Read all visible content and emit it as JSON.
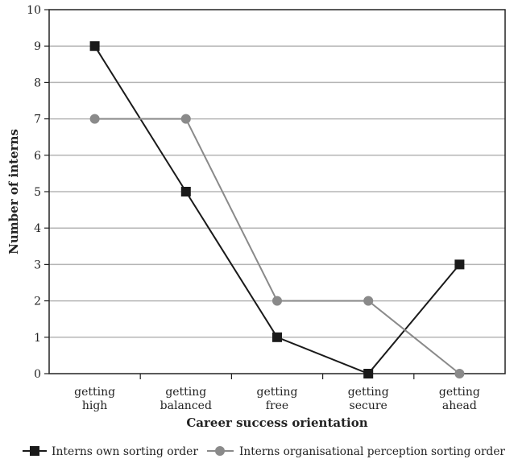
{
  "chart_data": {
    "type": "line",
    "categories": [
      [
        "getting",
        "high"
      ],
      [
        "getting",
        "balanced"
      ],
      [
        "getting",
        "free"
      ],
      [
        "getting",
        "secure"
      ],
      [
        "getting",
        "ahead"
      ]
    ],
    "series": [
      {
        "name": "Interns own sorting order",
        "values": [
          9,
          5,
          1,
          0,
          3
        ],
        "color": "#1a1a1a",
        "marker": "square"
      },
      {
        "name": "Interns organisational perception sorting order",
        "values": [
          7,
          7,
          2,
          2,
          0
        ],
        "color": "#8a8a8a",
        "marker": "circle"
      }
    ],
    "title": "",
    "xlabel": "Career success orientation",
    "ylabel": "Number of interns",
    "ylim": [
      0,
      10
    ],
    "yticks": [
      "0",
      "1",
      "2",
      "3",
      "4",
      "5",
      "6",
      "7",
      "8",
      "9",
      "10"
    ],
    "grid": true,
    "legend": "bottom"
  }
}
